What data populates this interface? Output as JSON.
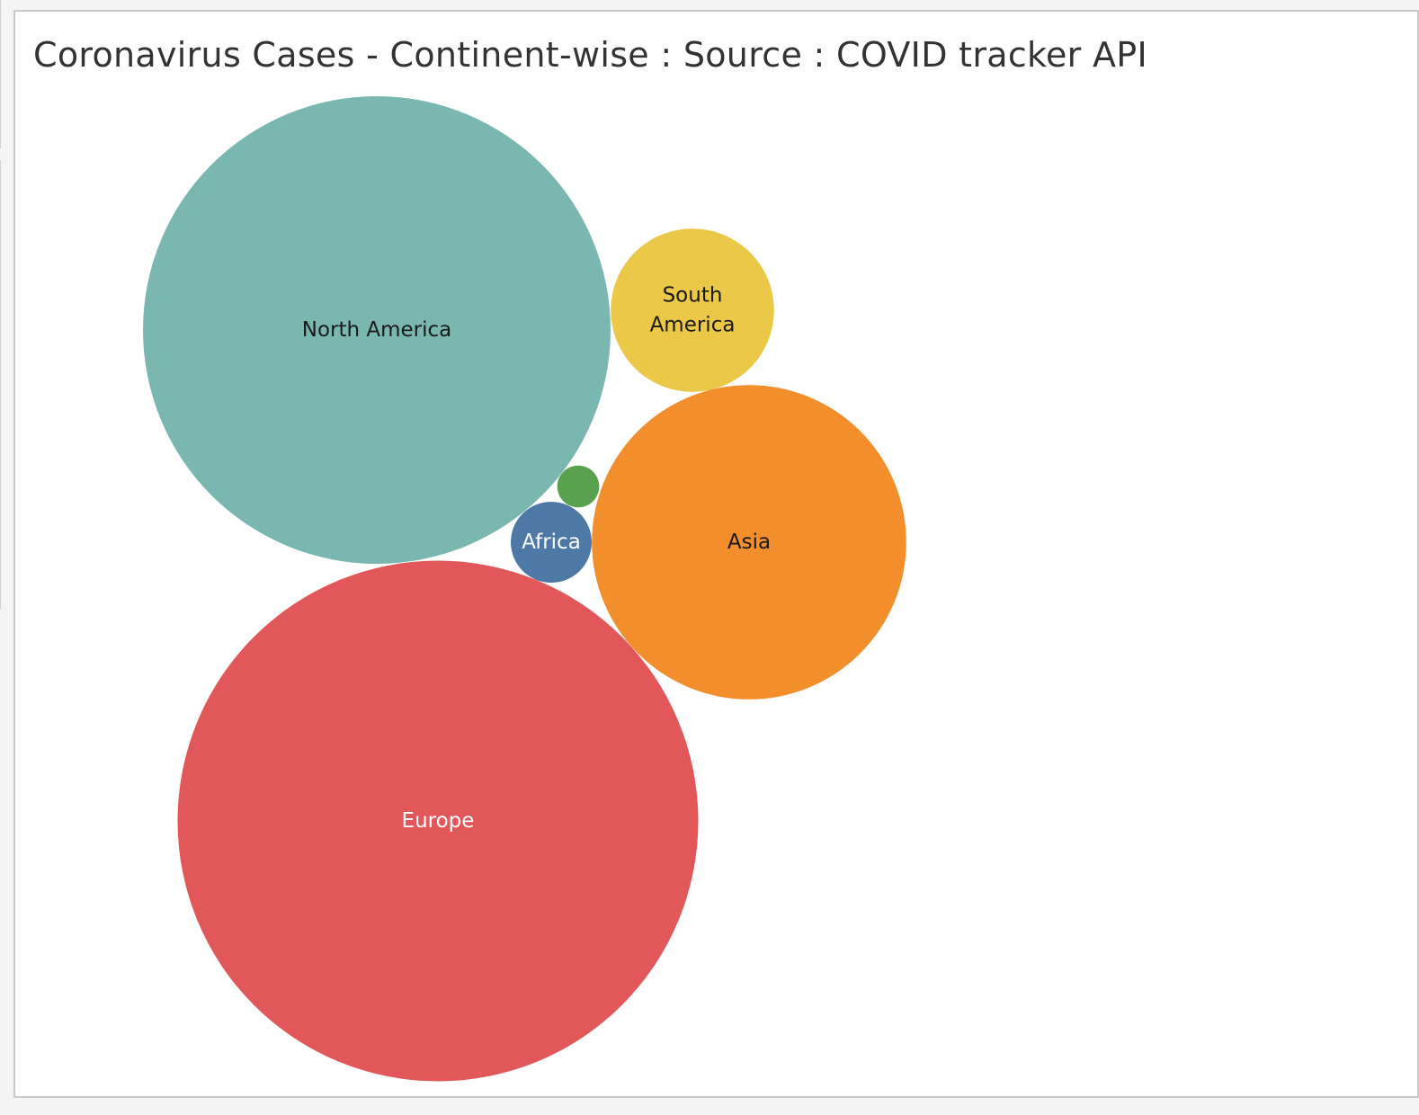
{
  "chart_data": {
    "type": "bubble",
    "title": "Coronavirus Cases - Continent-wise : Source : COVID tracker API",
    "series": [
      {
        "name": "North America",
        "label_lines": [
          "North America"
        ],
        "value": 1000,
        "color": "#79b7b0",
        "label_color": "#1a1a1a"
      },
      {
        "name": "Europe",
        "label_lines": [
          "Europe"
        ],
        "value": 1240,
        "color": "#e1575a",
        "label_color": "#ffffff"
      },
      {
        "name": "Asia",
        "label_lines": [
          "Asia"
        ],
        "value": 452,
        "color": "#f28e2c",
        "label_color": "#1a1a1a"
      },
      {
        "name": "South America",
        "label_lines": [
          "South",
          "America"
        ],
        "value": 122,
        "color": "#ebc847",
        "label_color": "#1a1a1a"
      },
      {
        "name": "Africa",
        "label_lines": [
          "Africa"
        ],
        "value": 30,
        "color": "#4e79a7",
        "label_color": "#ffffff"
      },
      {
        "name": "",
        "label_lines": [],
        "value": 8,
        "color": "#59a14f",
        "label_color": "#ffffff"
      }
    ]
  }
}
